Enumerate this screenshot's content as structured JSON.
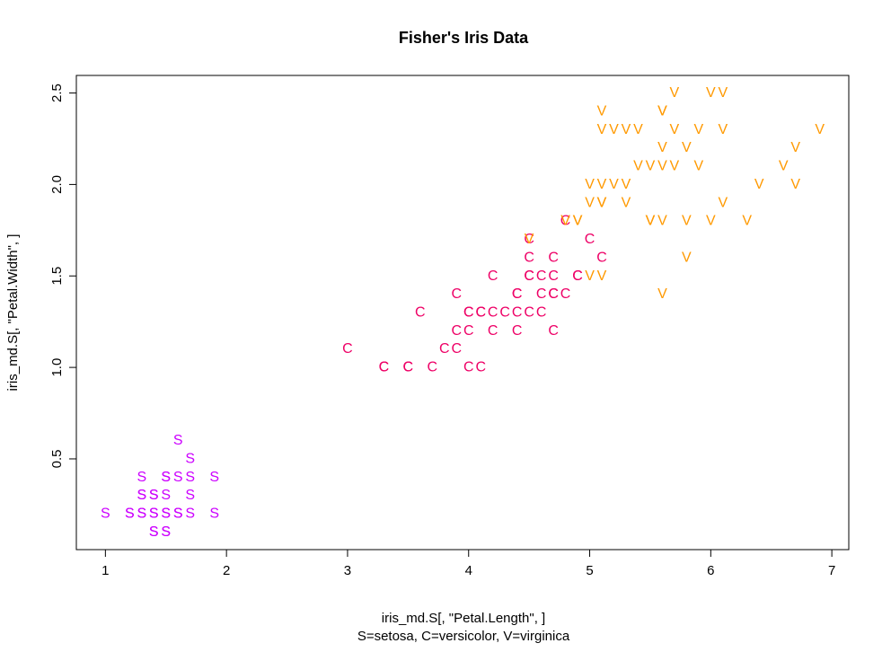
{
  "chart_data": {
    "type": "scatter",
    "title": "Fisher's Iris Data",
    "xlabel": "iris_md.S[, \"Petal.Length\", ]",
    "ylabel": "iris_md.S[, \"Petal.Width\", ]",
    "subtitle": "S=setosa,  C=versicolor,  V=virginica",
    "xlim": [
      0.76,
      7.14
    ],
    "ylim": [
      0.004,
      2.596
    ],
    "x_ticks": [
      "1",
      "2",
      "3",
      "4",
      "5",
      "6",
      "7"
    ],
    "y_ticks": [
      "0.5",
      "1.0",
      "1.5",
      "2.0",
      "2.5"
    ],
    "grid": false,
    "colors": {
      "setosa": "#cc00ff",
      "versicolor": "#ee0066",
      "virginica": "#ff9900"
    },
    "series": [
      {
        "name": "setosa",
        "symbol": "S",
        "color": "#cc00ff",
        "points": [
          [
            1.6,
            0.6
          ],
          [
            1.7,
            0.5
          ],
          [
            1.3,
            0.4
          ],
          [
            1.5,
            0.4
          ],
          [
            1.5,
            0.4
          ],
          [
            1.6,
            0.4
          ],
          [
            1.7,
            0.4
          ],
          [
            1.9,
            0.4
          ],
          [
            1.3,
            0.3
          ],
          [
            1.3,
            0.3
          ],
          [
            1.4,
            0.3
          ],
          [
            1.4,
            0.3
          ],
          [
            1.5,
            0.3
          ],
          [
            1.7,
            0.3
          ],
          [
            1.0,
            0.2
          ],
          [
            1.2,
            0.2
          ],
          [
            1.2,
            0.2
          ],
          [
            1.3,
            0.2
          ],
          [
            1.3,
            0.2
          ],
          [
            1.4,
            0.2
          ],
          [
            1.4,
            0.2
          ],
          [
            1.5,
            0.2
          ],
          [
            1.5,
            0.2
          ],
          [
            1.6,
            0.2
          ],
          [
            1.6,
            0.2
          ],
          [
            1.7,
            0.2
          ],
          [
            1.9,
            0.2
          ],
          [
            1.4,
            0.1
          ],
          [
            1.4,
            0.1
          ],
          [
            1.5,
            0.1
          ],
          [
            1.5,
            0.1
          ]
        ]
      },
      {
        "name": "versicolor",
        "symbol": "C",
        "color": "#ee0066",
        "points": [
          [
            4.8,
            1.8
          ],
          [
            4.5,
            1.7
          ],
          [
            5.0,
            1.7
          ],
          [
            4.5,
            1.6
          ],
          [
            4.7,
            1.6
          ],
          [
            5.1,
            1.6
          ],
          [
            4.2,
            1.5
          ],
          [
            4.5,
            1.5
          ],
          [
            4.5,
            1.5
          ],
          [
            4.6,
            1.5
          ],
          [
            4.7,
            1.5
          ],
          [
            4.9,
            1.5
          ],
          [
            4.9,
            1.5
          ],
          [
            3.9,
            1.4
          ],
          [
            4.4,
            1.4
          ],
          [
            4.4,
            1.4
          ],
          [
            4.6,
            1.4
          ],
          [
            4.7,
            1.4
          ],
          [
            4.7,
            1.4
          ],
          [
            4.8,
            1.4
          ],
          [
            3.6,
            1.3
          ],
          [
            4.0,
            1.3
          ],
          [
            4.0,
            1.3
          ],
          [
            4.1,
            1.3
          ],
          [
            4.1,
            1.3
          ],
          [
            4.2,
            1.3
          ],
          [
            4.3,
            1.3
          ],
          [
            4.4,
            1.3
          ],
          [
            4.5,
            1.3
          ],
          [
            4.6,
            1.3
          ],
          [
            3.9,
            1.2
          ],
          [
            4.0,
            1.2
          ],
          [
            4.2,
            1.2
          ],
          [
            4.4,
            1.2
          ],
          [
            4.7,
            1.2
          ],
          [
            3.0,
            1.1
          ],
          [
            3.8,
            1.1
          ],
          [
            3.9,
            1.1
          ],
          [
            3.3,
            1.0
          ],
          [
            3.3,
            1.0
          ],
          [
            3.5,
            1.0
          ],
          [
            3.5,
            1.0
          ],
          [
            3.7,
            1.0
          ],
          [
            4.0,
            1.0
          ],
          [
            4.1,
            1.0
          ]
        ]
      },
      {
        "name": "virginica",
        "symbol": "V",
        "color": "#ff9900",
        "points": [
          [
            5.7,
            2.5
          ],
          [
            6.0,
            2.5
          ],
          [
            6.1,
            2.5
          ],
          [
            5.1,
            2.4
          ],
          [
            5.6,
            2.4
          ],
          [
            5.6,
            2.4
          ],
          [
            5.1,
            2.3
          ],
          [
            5.2,
            2.3
          ],
          [
            5.3,
            2.3
          ],
          [
            5.4,
            2.3
          ],
          [
            5.7,
            2.3
          ],
          [
            5.9,
            2.3
          ],
          [
            6.1,
            2.3
          ],
          [
            6.9,
            2.3
          ],
          [
            5.6,
            2.2
          ],
          [
            5.8,
            2.2
          ],
          [
            6.7,
            2.2
          ],
          [
            5.4,
            2.1
          ],
          [
            5.5,
            2.1
          ],
          [
            5.6,
            2.1
          ],
          [
            5.7,
            2.1
          ],
          [
            5.9,
            2.1
          ],
          [
            6.6,
            2.1
          ],
          [
            5.0,
            2.0
          ],
          [
            5.1,
            2.0
          ],
          [
            5.2,
            2.0
          ],
          [
            5.3,
            2.0
          ],
          [
            6.4,
            2.0
          ],
          [
            6.7,
            2.0
          ],
          [
            5.0,
            1.9
          ],
          [
            5.1,
            1.9
          ],
          [
            5.1,
            1.9
          ],
          [
            5.3,
            1.9
          ],
          [
            6.1,
            1.9
          ],
          [
            4.8,
            1.8
          ],
          [
            4.9,
            1.8
          ],
          [
            4.9,
            1.8
          ],
          [
            5.5,
            1.8
          ],
          [
            5.5,
            1.8
          ],
          [
            5.6,
            1.8
          ],
          [
            5.8,
            1.8
          ],
          [
            6.0,
            1.8
          ],
          [
            6.3,
            1.8
          ],
          [
            4.5,
            1.7
          ],
          [
            5.8,
            1.6
          ],
          [
            5.0,
            1.5
          ],
          [
            5.1,
            1.5
          ],
          [
            5.6,
            1.4
          ]
        ]
      }
    ]
  }
}
